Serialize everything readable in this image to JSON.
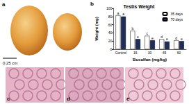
{
  "panels": {
    "a": {
      "label": "a",
      "scale_bar": "0.25 cm"
    },
    "b": {
      "label": "b"
    },
    "c": {
      "label": "c"
    },
    "d": {
      "label": "d"
    },
    "e": {
      "label": "e"
    }
  },
  "chart_data": {
    "type": "bar",
    "title": "Testis Weight",
    "categories": [
      "Control",
      "15",
      "30",
      "45",
      "60"
    ],
    "series": [
      {
        "name": "35 days",
        "color": "#ffffff",
        "values": [
          83,
          45,
          33,
          25,
          22
        ],
        "letters": [
          "a",
          "b",
          "c",
          "d",
          "d"
        ]
      },
      {
        "name": "70 days",
        "color": "#1f2d5a",
        "values": [
          80,
          25,
          22,
          19,
          20
        ],
        "letters": [
          "a",
          "e",
          "e",
          "e",
          "e"
        ]
      }
    ],
    "x_label": "Busulfan (mg/kg)",
    "y_label": "Weight (mg)",
    "ylim": [
      0,
      100
    ],
    "yticks": [
      0,
      20,
      40,
      60,
      80,
      100
    ],
    "legend": "upper right",
    "grid": false
  }
}
